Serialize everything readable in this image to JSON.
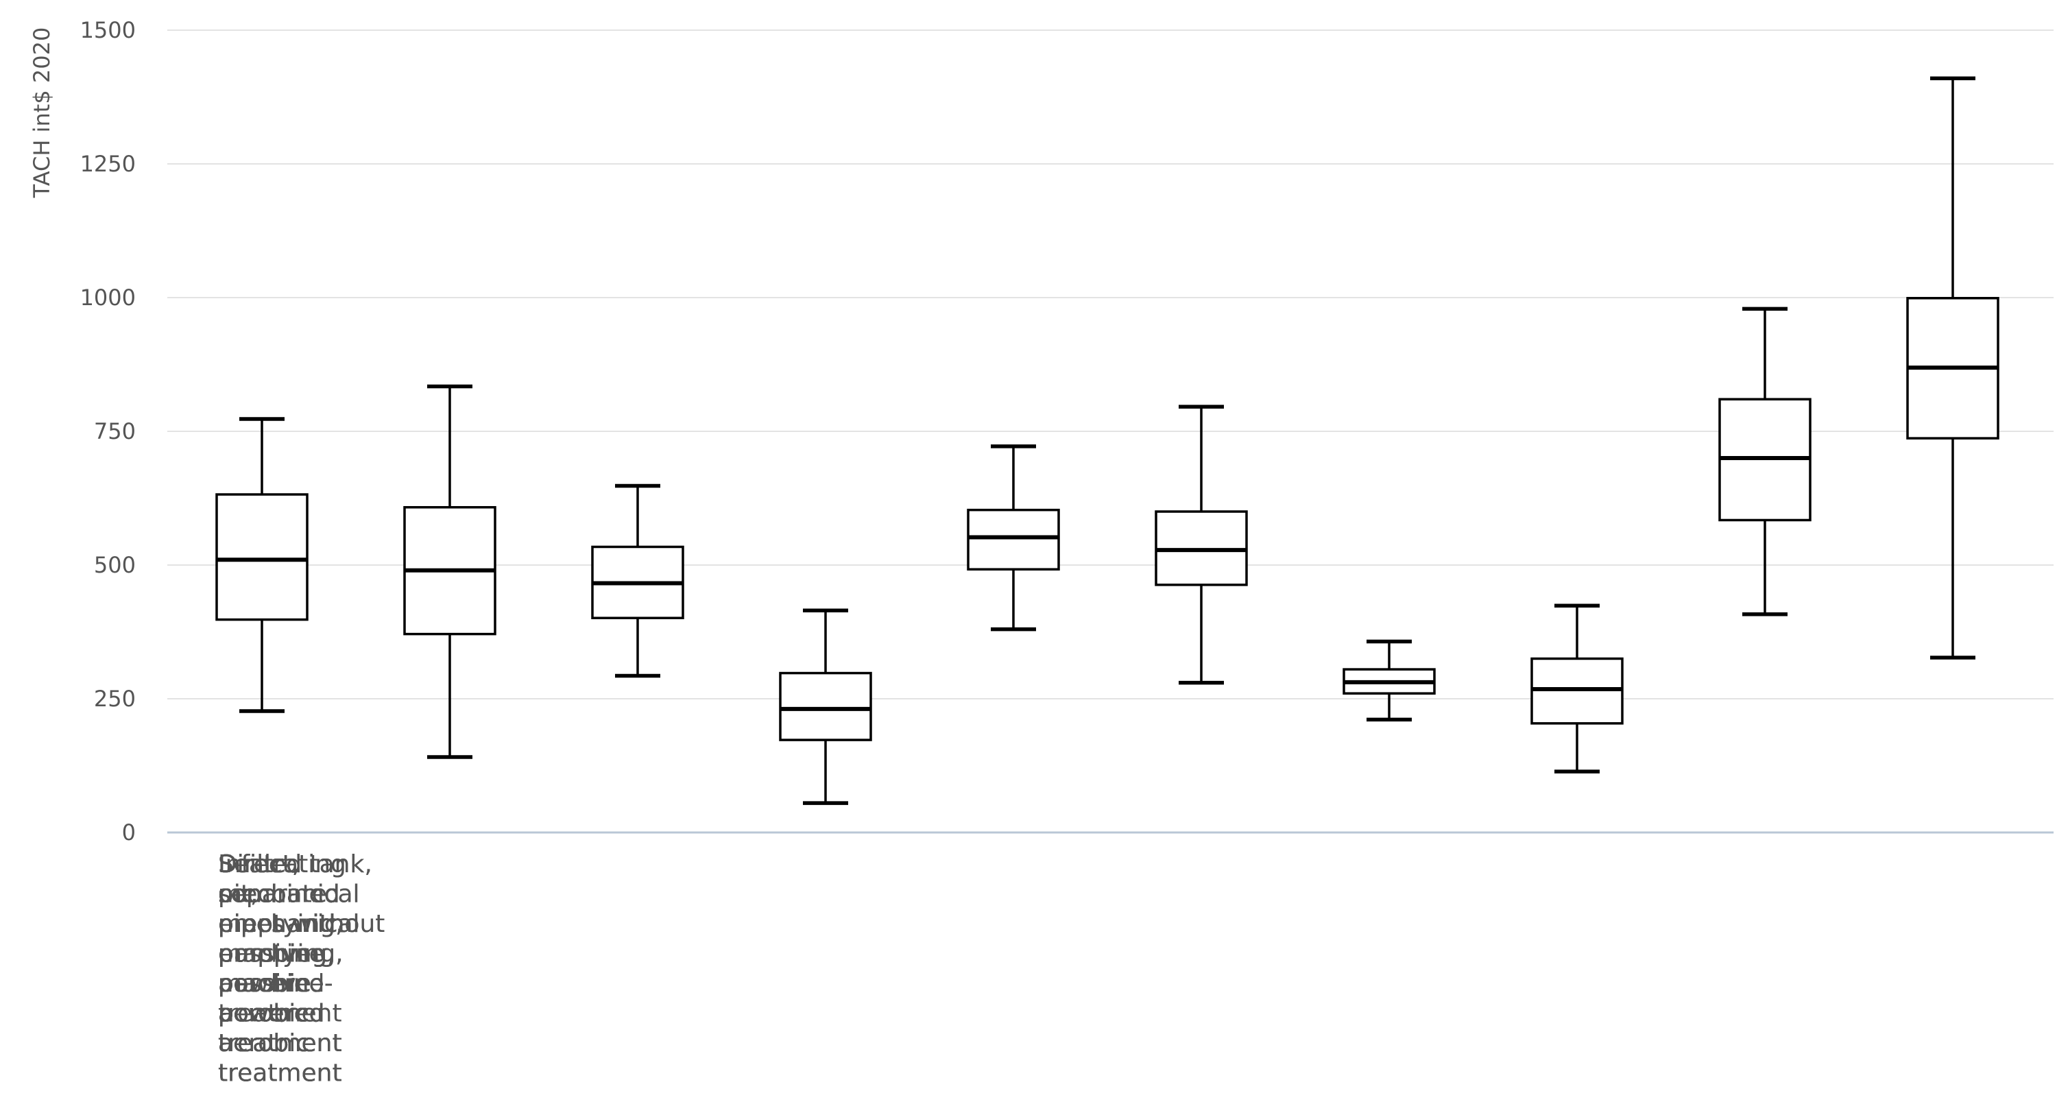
{
  "chart_data": {
    "type": "box",
    "title": "",
    "xlabel": "",
    "ylabel": "TACH int$ 2020",
    "ylim": [
      0,
      1500
    ],
    "yticks": [
      0,
      250,
      500,
      750,
      1000,
      1250,
      1500
    ],
    "grid": true,
    "categories": [
      [
        "Infiltrating",
        "pit,",
        "mechanical",
        "emptying,",
        "machine",
        "powered",
        "aerobic",
        "treatment"
      ],
      [
        "Infiltrating",
        "pit,",
        "mechanical",
        "emptying,",
        "passive",
        "aerobic",
        "treatment"
      ],
      [
        "Sealed tank,",
        "mechanical",
        "emptying,",
        "machine",
        "powered",
        "aerobic",
        "treatment"
      ],
      [
        "Sealed tank,",
        "mechanical",
        "emptying,",
        "passive",
        "aerobic",
        "treatment"
      ],
      [
        "Direct,",
        "combined",
        "pipes with",
        "pumping,",
        "machine-",
        "powered",
        "aerobic",
        "treatment"
      ],
      [
        "Direct,",
        "combined",
        "pipes with",
        "pumping,",
        "passive",
        "aerobic",
        "treatment"
      ],
      [
        "Direct,",
        "combined",
        "pipes without",
        "pumping,",
        "machine-",
        "powered",
        "aerobic",
        "treatment"
      ],
      [
        "Direct,",
        "combined",
        "pipes without",
        "pumping,",
        "passive",
        "aerobic",
        "treatment"
      ],
      [
        "Direct,",
        "separate",
        "pipes with",
        "pumping,",
        "machine-",
        "powered",
        "aerobic",
        "treatment"
      ],
      [
        "Direct,",
        "separate",
        "pipes with",
        "pumping,",
        "passive",
        "aerobic",
        "treatment"
      ]
    ],
    "boxes": [
      {
        "min": 227,
        "q1": 398,
        "median": 510,
        "q3": 632,
        "max": 773
      },
      {
        "min": 141,
        "q1": 371,
        "median": 490,
        "q3": 608,
        "max": 834
      },
      {
        "min": 293,
        "q1": 401,
        "median": 466,
        "q3": 534,
        "max": 648
      },
      {
        "min": 55,
        "q1": 173,
        "median": 231,
        "q3": 298,
        "max": 415
      },
      {
        "min": 380,
        "q1": 492,
        "median": 552,
        "q3": 603,
        "max": 722
      },
      {
        "min": 280,
        "q1": 463,
        "median": 528,
        "q3": 600,
        "max": 796
      },
      {
        "min": 211,
        "q1": 260,
        "median": 281,
        "q3": 305,
        "max": 357
      },
      {
        "min": 114,
        "q1": 204,
        "median": 268,
        "q3": 325,
        "max": 424
      },
      {
        "min": 408,
        "q1": 584,
        "median": 700,
        "q3": 810,
        "max": 979
      },
      {
        "min": 327,
        "q1": 737,
        "median": 869,
        "q3": 999,
        "max": 1410
      }
    ],
    "colors": {
      "box_stroke": "#000000",
      "box_fill": "#ffffff",
      "grid": "#e3e3e3",
      "baseline": "#b9c7d6",
      "text": "#555555"
    }
  }
}
